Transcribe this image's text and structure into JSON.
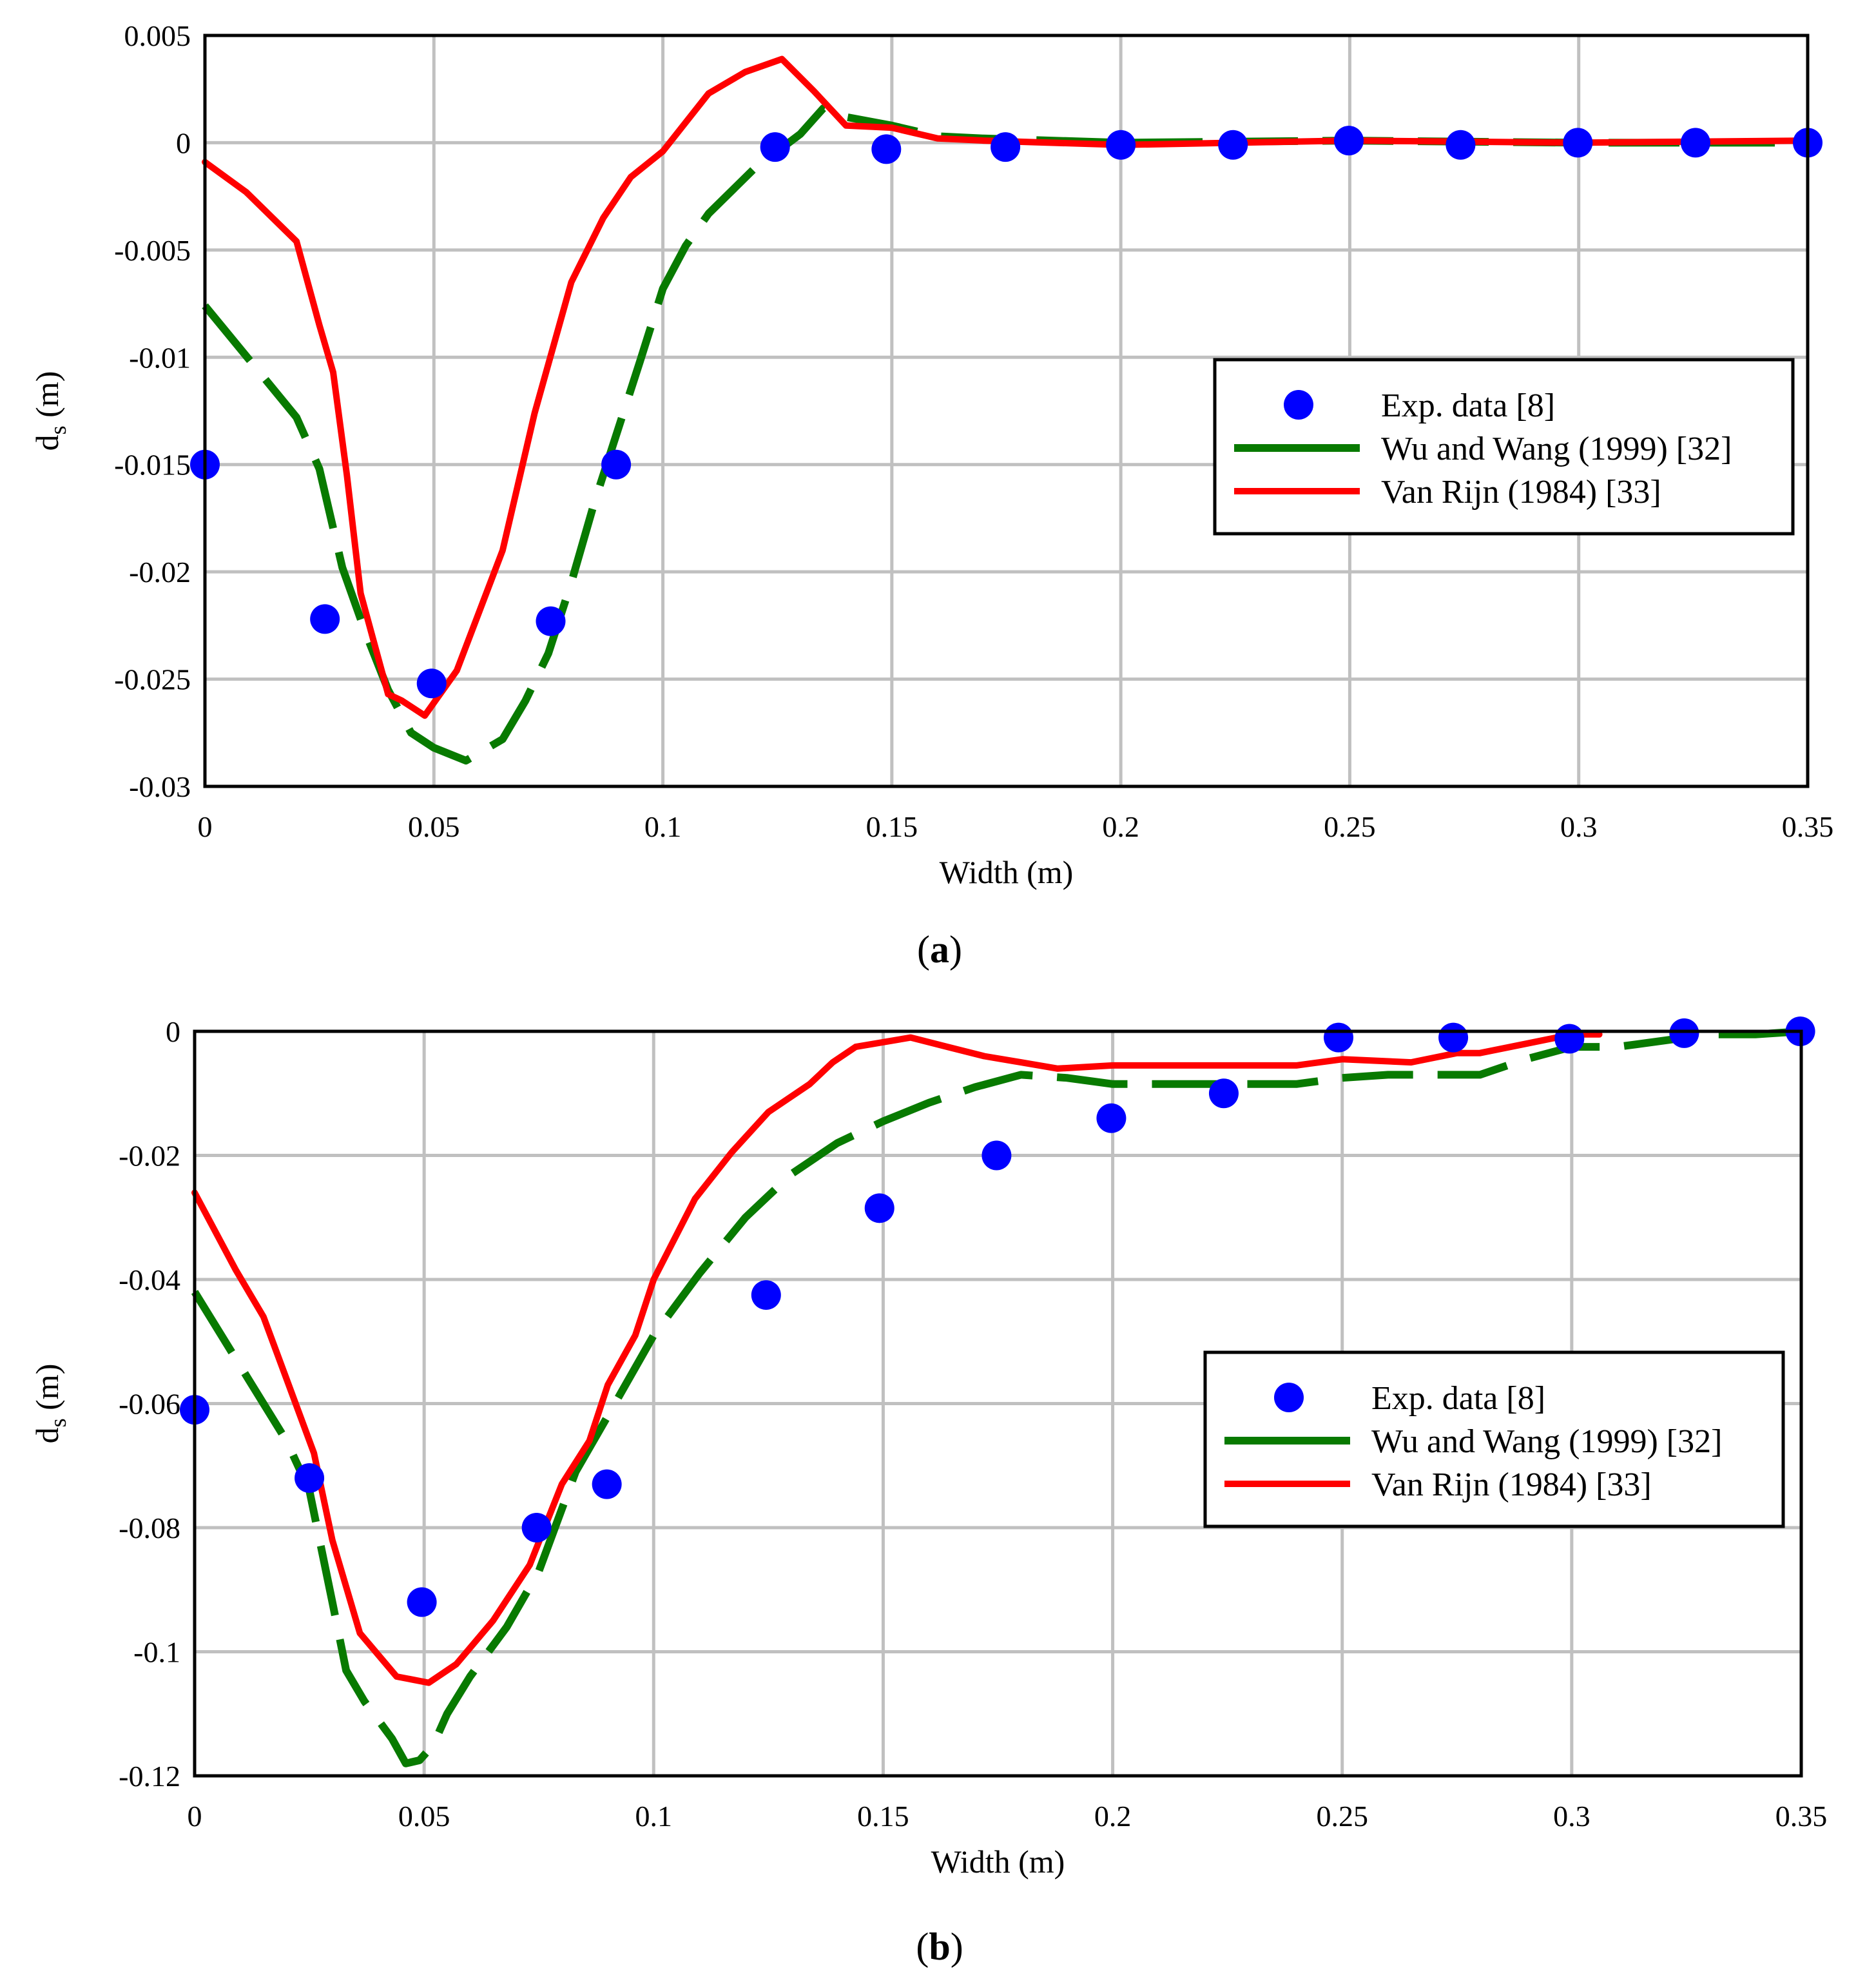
{
  "figure": {
    "panels": [
      {
        "label": "a",
        "caption_open": "(",
        "caption_close": ")"
      },
      {
        "label": "b",
        "caption_open": "(",
        "caption_close": ")"
      }
    ],
    "colors": {
      "exp": "#0000ff",
      "wu": "#087a00",
      "vanrijn": "#ff0000",
      "grid": "#c0c0c0",
      "frame": "#000000"
    }
  },
  "chart_data": [
    {
      "type": "line",
      "panel": "a",
      "xlabel": "Width (m)",
      "ylabel_main": "d",
      "ylabel_sub": "s",
      "ylabel_unit": " (m)",
      "xlim": [
        0,
        0.35
      ],
      "ylim": [
        -0.03,
        0.005
      ],
      "xticks": [
        0,
        0.05,
        0.1,
        0.15,
        0.2,
        0.25,
        0.3,
        0.35
      ],
      "xtick_labels": [
        "0",
        "0.05",
        "0.1",
        "0.15",
        "0.2",
        "0.25",
        "0.3",
        "0.35"
      ],
      "yticks": [
        0.005,
        0,
        -0.005,
        -0.01,
        -0.015,
        -0.02,
        -0.025,
        -0.03
      ],
      "ytick_labels": [
        "0.005",
        "0",
        "-0.005",
        "-0.01",
        "-0.015",
        "-0.02",
        "-0.025",
        "-0.03"
      ],
      "legend_position": "center-right",
      "series": [
        {
          "name": "Exp. data [8]",
          "kind": "scatter",
          "x": [
            0,
            0.0262,
            0.0495,
            0.0755,
            0.0898,
            0.1245,
            0.1488,
            0.1748,
            0.2,
            0.2245,
            0.2498,
            0.2742,
            0.2998,
            0.3255,
            0.35
          ],
          "y": [
            -0.015,
            -0.0222,
            -0.0252,
            -0.0223,
            -0.015,
            -0.0002,
            -0.0003,
            -0.0002,
            -0.0001,
            -0.0001,
            0.0001,
            -0.0001,
            0,
            0,
            0
          ]
        },
        {
          "name": "Wu and Wang (1999) [32]",
          "kind": "dashed-line",
          "x": [
            0,
            0.01,
            0.02,
            0.025,
            0.03,
            0.035,
            0.04,
            0.045,
            0.05,
            0.057,
            0.065,
            0.07,
            0.075,
            0.08,
            0.085,
            0.09,
            0.095,
            0.1,
            0.105,
            0.11,
            0.12,
            0.13,
            0.135,
            0.14,
            0.15,
            0.16,
            0.17,
            0.2,
            0.25,
            0.3,
            0.35
          ],
          "y": [
            -0.0076,
            -0.0102,
            -0.0128,
            -0.0152,
            -0.0198,
            -0.0228,
            -0.0255,
            -0.0275,
            -0.0282,
            -0.0288,
            -0.0278,
            -0.026,
            -0.0238,
            -0.0205,
            -0.0168,
            -0.0135,
            -0.0102,
            -0.0068,
            -0.0048,
            -0.0033,
            -0.0012,
            0.0004,
            0.0016,
            0.0012,
            0.0008,
            0.0003,
            0.0002,
            0,
            0.0001,
            0,
            0
          ]
        },
        {
          "name": "Van Rijn (1984) [33]",
          "kind": "line",
          "x": [
            0,
            0.009,
            0.02,
            0.025,
            0.028,
            0.031,
            0.034,
            0.04,
            0.043,
            0.048,
            0.055,
            0.065,
            0.072,
            0.08,
            0.087,
            0.093,
            0.1,
            0.11,
            0.118,
            0.126,
            0.133,
            0.14,
            0.15,
            0.16,
            0.17,
            0.2,
            0.25,
            0.3,
            0.35
          ],
          "y": [
            -0.0009,
            -0.0023,
            -0.0046,
            -0.0085,
            -0.0107,
            -0.0155,
            -0.021,
            -0.0257,
            -0.026,
            -0.0267,
            -0.0246,
            -0.019,
            -0.0126,
            -0.0065,
            -0.0035,
            -0.0016,
            -0.0004,
            0.0023,
            0.0033,
            0.0039,
            0.0024,
            0.0008,
            0.0007,
            0.0002,
            0.0001,
            -0.0001,
            0.0001,
            0,
            0.0001
          ]
        }
      ]
    },
    {
      "type": "line",
      "panel": "b",
      "xlabel": "Width (m)",
      "ylabel_main": "d",
      "ylabel_sub": "s",
      "ylabel_unit": " (m)",
      "xlim": [
        0,
        0.35
      ],
      "ylim": [
        -0.12,
        0
      ],
      "xticks": [
        0,
        0.05,
        0.1,
        0.15,
        0.2,
        0.25,
        0.3,
        0.35
      ],
      "xtick_labels": [
        "0",
        "0.05",
        "0.1",
        "0.15",
        "0.2",
        "0.25",
        "0.3",
        "0.35"
      ],
      "yticks": [
        0,
        -0.02,
        -0.04,
        -0.06,
        -0.08,
        -0.1,
        -0.12
      ],
      "ytick_labels": [
        "0",
        "-0.02",
        "-0.04",
        "-0.06",
        "-0.08",
        "-0.1",
        "-0.12"
      ],
      "legend_position": "center-right",
      "series": [
        {
          "name": "Exp. data [8]",
          "kind": "scatter",
          "x": [
            0,
            0.025,
            0.0495,
            0.0745,
            0.0898,
            0.1245,
            0.1492,
            0.1747,
            0.1997,
            0.2242,
            0.2492,
            0.2742,
            0.2995,
            0.3245,
            0.3498
          ],
          "y": [
            -0.061,
            -0.072,
            -0.092,
            -0.08,
            -0.073,
            -0.0425,
            -0.0285,
            -0.02,
            -0.014,
            -0.01,
            -0.001,
            -0.001,
            -0.0012,
            -0.0003,
            0
          ]
        },
        {
          "name": "Wu and Wang (1999) [32]",
          "kind": "dashed-line",
          "x": [
            0,
            0.01,
            0.02,
            0.025,
            0.03,
            0.033,
            0.037,
            0.043,
            0.046,
            0.049,
            0.052,
            0.055,
            0.06,
            0.068,
            0.075,
            0.083,
            0.09,
            0.1,
            0.11,
            0.12,
            0.13,
            0.14,
            0.15,
            0.16,
            0.17,
            0.18,
            0.19,
            0.2,
            0.21,
            0.22,
            0.24,
            0.25,
            0.26,
            0.28,
            0.29,
            0.3,
            0.31,
            0.32,
            0.33,
            0.34,
            0.35
          ],
          "y": [
            -0.042,
            -0.054,
            -0.066,
            -0.074,
            -0.092,
            -0.103,
            -0.108,
            -0.114,
            -0.118,
            -0.1175,
            -0.115,
            -0.11,
            -0.104,
            -0.096,
            -0.087,
            -0.071,
            -0.062,
            -0.049,
            -0.039,
            -0.03,
            -0.023,
            -0.018,
            -0.0145,
            -0.0115,
            -0.009,
            -0.007,
            -0.0075,
            -0.0085,
            -0.0085,
            -0.0085,
            -0.0085,
            -0.0075,
            -0.007,
            -0.007,
            -0.0045,
            -0.0025,
            -0.0025,
            -0.0015,
            -0.0005,
            -0.0005,
            0
          ]
        },
        {
          "name": "Van Rijn (1984) [33]",
          "kind": "line",
          "x": [
            0,
            0.009,
            0.015,
            0.02,
            0.026,
            0.03,
            0.036,
            0.044,
            0.051,
            0.057,
            0.065,
            0.073,
            0.08,
            0.086,
            0.09,
            0.096,
            0.1,
            0.109,
            0.117,
            0.125,
            0.134,
            0.139,
            0.144,
            0.156,
            0.164,
            0.172,
            0.18,
            0.188,
            0.2,
            0.21,
            0.22,
            0.24,
            0.25,
            0.265,
            0.275,
            0.28,
            0.29,
            0.3,
            0.306
          ],
          "y": [
            -0.026,
            -0.0385,
            -0.046,
            -0.056,
            -0.068,
            -0.082,
            -0.097,
            -0.104,
            -0.105,
            -0.102,
            -0.095,
            -0.086,
            -0.073,
            -0.066,
            -0.057,
            -0.049,
            -0.04,
            -0.027,
            -0.0195,
            -0.013,
            -0.0085,
            -0.005,
            -0.0025,
            -0.001,
            -0.0025,
            -0.004,
            -0.005,
            -0.006,
            -0.0055,
            -0.0055,
            -0.0055,
            -0.0055,
            -0.0045,
            -0.005,
            -0.0035,
            -0.0035,
            -0.002,
            -0.0005,
            -0.0005
          ]
        }
      ]
    }
  ]
}
